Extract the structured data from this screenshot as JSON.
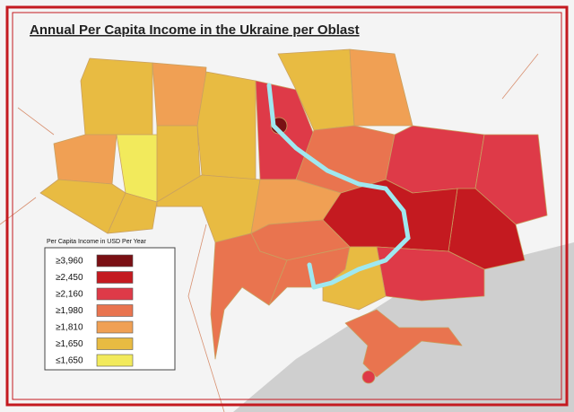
{
  "header": {
    "title": "Annual Per Capita Income in the Ukraine per Oblast"
  },
  "legend": {
    "title": "Per Capita Income in USD Per Year",
    "items": [
      {
        "label": "≥3,960",
        "color": "#7a1014"
      },
      {
        "label": "≥2,450",
        "color": "#c41a20"
      },
      {
        "label": "≥2,160",
        "color": "#de3a48"
      },
      {
        "label": "≥1,980",
        "color": "#e9744f"
      },
      {
        "label": "≥1,810",
        "color": "#f0a054"
      },
      {
        "label": "≥1,650",
        "color": "#e8bb42"
      },
      {
        "label": "≤1,650",
        "color": "#f2ea5c"
      }
    ]
  }
}
